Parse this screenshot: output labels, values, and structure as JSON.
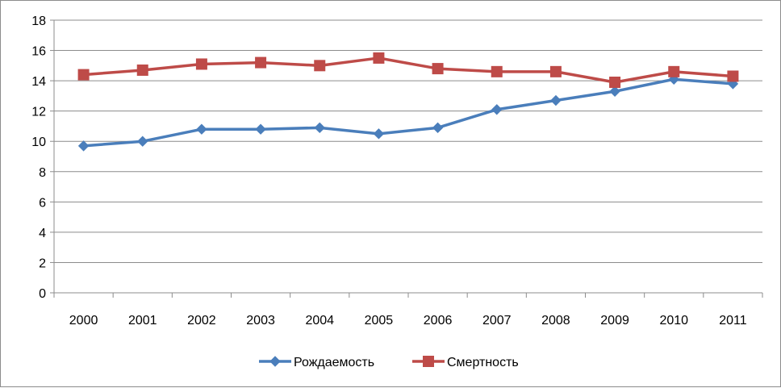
{
  "chart_data": {
    "type": "line",
    "title": "",
    "xlabel": "",
    "ylabel": "",
    "x": [
      "2000",
      "2001",
      "2002",
      "2003",
      "2004",
      "2005",
      "2006",
      "2007",
      "2008",
      "2009",
      "2010",
      "2011"
    ],
    "ylim": [
      0,
      18
    ],
    "yticks": [
      0,
      2,
      4,
      6,
      8,
      10,
      12,
      14,
      16,
      18
    ],
    "grid": true,
    "legend_position": "bottom",
    "series": [
      {
        "name": "Рождаемость",
        "color": "#4a7ebb",
        "marker": "diamond",
        "values": [
          9.7,
          10.0,
          10.8,
          10.8,
          10.9,
          10.5,
          10.9,
          12.1,
          12.7,
          13.3,
          14.1,
          13.8
        ]
      },
      {
        "name": "Смертность",
        "color": "#be4b48",
        "marker": "square",
        "values": [
          14.4,
          14.7,
          15.1,
          15.2,
          15.0,
          15.5,
          14.8,
          14.6,
          14.6,
          13.9,
          14.6,
          14.3
        ]
      }
    ]
  }
}
